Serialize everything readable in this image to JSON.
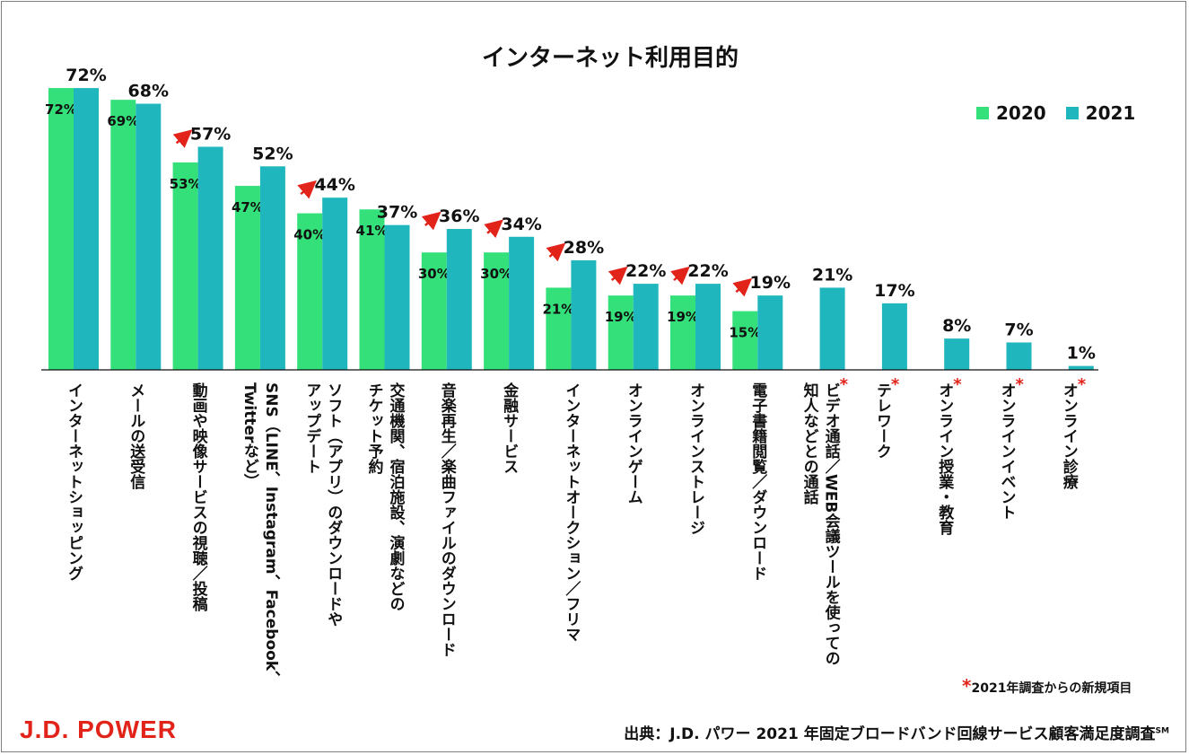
{
  "title": "インターネット利用目的",
  "legend": [
    {
      "label": "2020",
      "color": "#33e07a"
    },
    {
      "label": "2021",
      "color": "#20b6be"
    }
  ],
  "chart_data": {
    "type": "bar",
    "title": "インターネット利用目的",
    "ylim": [
      0,
      75
    ],
    "grid": false,
    "legend_position": "top-right",
    "categories": [
      "インターネットショッピング",
      "メールの送受信",
      "動画や映像サービスの視聴／投稿",
      "SNS（LINE、Instagram、Facebook、Twitterなど）",
      "ソフト（アプリ）のダウンロードやアップデート",
      "交通機関、宿泊施設、演劇などのチケット予約",
      "音楽再生／楽曲ファイルのダウンロード",
      "金融サービス",
      "インターネットオークション／フリマ",
      "オンラインゲーム",
      "オンラインストレージ",
      "電子書籍閲覧／ダウンロード",
      "ビデオ通話／WEB会議ツールを使っての知人などとの通話",
      "テレワーク",
      "オンライン授業・教育",
      "オンラインイベント",
      "オンライン診療"
    ],
    "category_lines": [
      [
        "インターネットショッピング"
      ],
      [
        "メールの送受信"
      ],
      [
        "動画や映像サービスの視聴／投稿"
      ],
      [
        "SNS（LINE、Instagram、Facebook、",
        "Twitterなど）"
      ],
      [
        "ソフト（アプリ）のダウンロードや",
        "アップデート"
      ],
      [
        "交通機関、宿泊施設、演劇などの",
        "チケット予約"
      ],
      [
        "音楽再生／楽曲ファイルのダウンロード"
      ],
      [
        "金融サービス"
      ],
      [
        "インターネットオークション／フリマ"
      ],
      [
        "オンラインゲーム"
      ],
      [
        "オンラインストレージ"
      ],
      [
        "電子書籍閲覧／ダウンロード"
      ],
      [
        "ビデオ通話／WEB会議ツールを使っての",
        "知人などとの通話"
      ],
      [
        "テレワーク"
      ],
      [
        "オンライン授業・教育"
      ],
      [
        "オンラインイベント"
      ],
      [
        "オンライン診療"
      ]
    ],
    "new_in_2021": [
      false,
      false,
      false,
      false,
      false,
      false,
      false,
      false,
      false,
      false,
      false,
      false,
      true,
      true,
      true,
      true,
      true
    ],
    "increase_arrow": [
      false,
      false,
      true,
      false,
      true,
      false,
      true,
      true,
      true,
      true,
      true,
      true,
      false,
      false,
      false,
      false,
      false
    ],
    "series": [
      {
        "name": "2020",
        "values": [
          72,
          69,
          53,
          47,
          40,
          41,
          30,
          30,
          21,
          19,
          19,
          15,
          null,
          null,
          null,
          null,
          null
        ],
        "labels": [
          "72%",
          "69%",
          "53%",
          "47%",
          "40%",
          "41%",
          "30%",
          "30%",
          "21%",
          "19%",
          "19%",
          "15%",
          "",
          "",
          "",
          "",
          ""
        ]
      },
      {
        "name": "2021",
        "values": [
          72,
          68,
          57,
          52,
          44,
          37,
          36,
          34,
          28,
          22,
          22,
          19,
          21,
          17,
          8,
          7,
          1
        ],
        "labels": [
          "72%",
          "68%",
          "57%",
          "52%",
          "44%",
          "37%",
          "36%",
          "34%",
          "28%",
          "22%",
          "22%",
          "19%",
          "21%",
          "17%",
          "8%",
          "7%",
          "1%"
        ]
      }
    ]
  },
  "footnote": {
    "star": "*",
    "text": "2021年調査からの新規項目"
  },
  "brand": "J.D. POWER",
  "source": {
    "text": "出典：J.D. パワー 2021 年固定ブロードバンド回線サービス顧客満足度調査",
    "mark": "SM"
  },
  "colors": {
    "arrow": "#e2231a",
    "axis": "#111111"
  }
}
